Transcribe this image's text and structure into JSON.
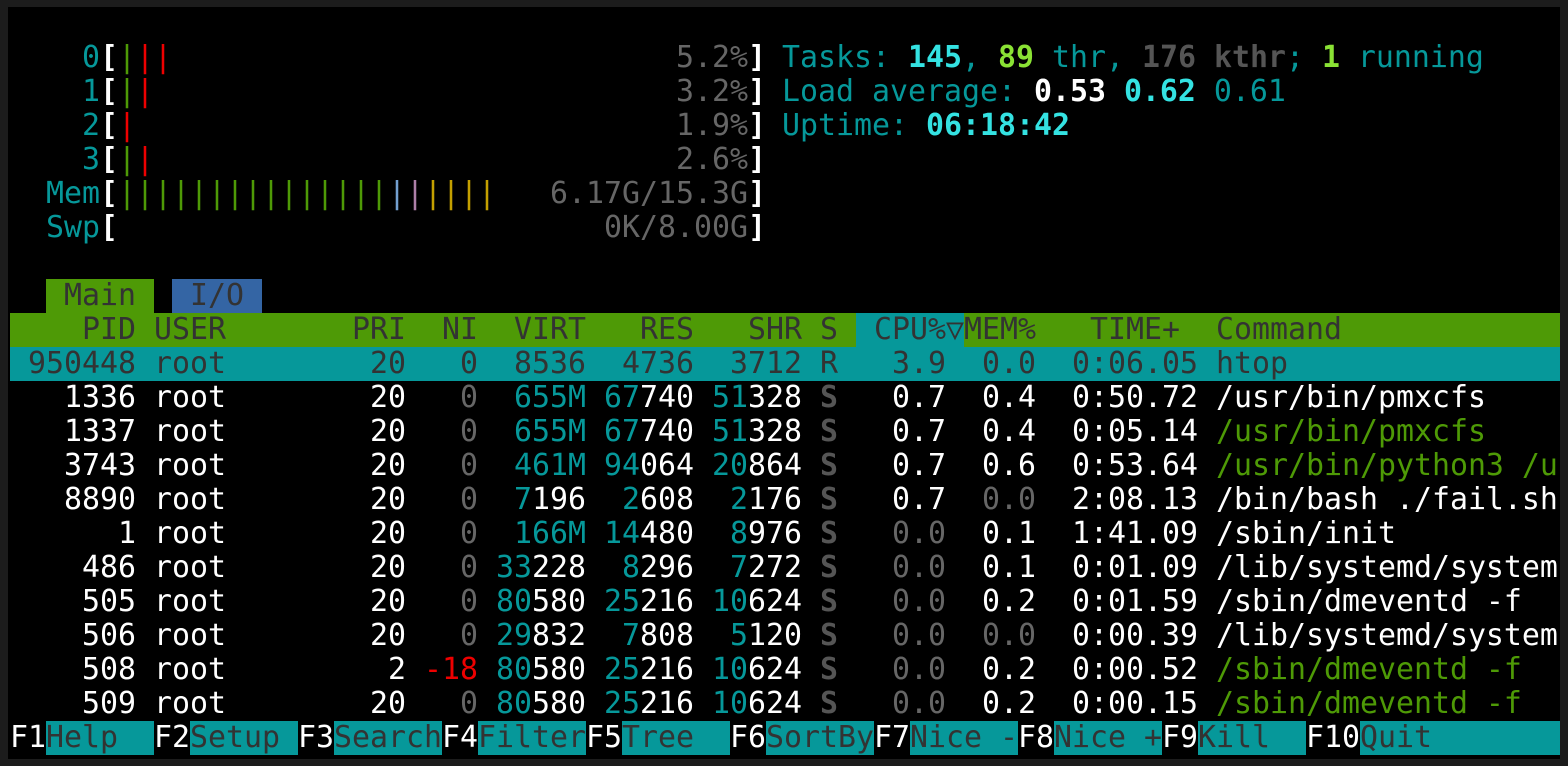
{
  "meters": {
    "cpus": [
      {
        "label": "0",
        "bars": [
          "green",
          "red",
          "red"
        ],
        "value": "5.2%"
      },
      {
        "label": "1",
        "bars": [
          "green",
          "red"
        ],
        "value": "3.2%"
      },
      {
        "label": "2",
        "bars": [
          "red"
        ],
        "value": "1.9%"
      },
      {
        "label": "3",
        "bars": [
          "green",
          "red"
        ],
        "value": "2.6%"
      }
    ],
    "mem": {
      "label": "Mem",
      "bars": [
        "green",
        "green",
        "green",
        "green",
        "green",
        "green",
        "green",
        "green",
        "green",
        "green",
        "green",
        "green",
        "green",
        "green",
        "green",
        "blue",
        "mag",
        "yel",
        "yel",
        "yel",
        "yel"
      ],
      "value": "6.17G/15.3G"
    },
    "swp": {
      "label": "Swp",
      "bars": [],
      "value": "0K/8.00G"
    }
  },
  "tasks": {
    "label": "Tasks: ",
    "tasks": "145",
    "sep1": ", ",
    "threads": "89",
    "thr": " thr, ",
    "kthreads": "176 kthr",
    "sep2": "; ",
    "running": "1",
    "running_label": " running"
  },
  "load": {
    "label": "Load average: ",
    "one": "0.53",
    "five": "0.62",
    "fifteen": "0.61"
  },
  "uptime": {
    "label": "Uptime: ",
    "value": "06:18:42"
  },
  "tabs": [
    {
      "label": "Main",
      "active": true
    },
    {
      "label": "I/O",
      "active": false
    }
  ],
  "columns": {
    "pid": "PID",
    "user": "USER",
    "pri": "PRI",
    "ni": "NI",
    "virt": "VIRT",
    "res": "RES",
    "shr": "SHR",
    "s": "S",
    "cpu": "CPU%▽",
    "mem": "MEM%",
    "time": "TIME+",
    "command": "Command"
  },
  "sort_column": "CPU%",
  "processes": [
    {
      "pid": "950448",
      "user": "root",
      "pri": "20",
      "ni": "0",
      "virt": "8536",
      "res": "4736",
      "shr": "3712",
      "s": "R",
      "cpu": "3.9",
      "mem": "0.0",
      "time": "0:06.05",
      "command": "htop",
      "thread": false,
      "selected": true
    },
    {
      "pid": "1336",
      "user": "root",
      "pri": "20",
      "ni": "0",
      "virt": "655M",
      "res": "67740",
      "shr": "51328",
      "s": "S",
      "cpu": "0.7",
      "mem": "0.4",
      "time": "0:50.72",
      "command": "/usr/bin/pmxcfs",
      "thread": false
    },
    {
      "pid": "1337",
      "user": "root",
      "pri": "20",
      "ni": "0",
      "virt": "655M",
      "res": "67740",
      "shr": "51328",
      "s": "S",
      "cpu": "0.7",
      "mem": "0.4",
      "time": "0:05.14",
      "command": "/usr/bin/pmxcfs",
      "thread": true
    },
    {
      "pid": "3743",
      "user": "root",
      "pri": "20",
      "ni": "0",
      "virt": "461M",
      "res": "94064",
      "shr": "20864",
      "s": "S",
      "cpu": "0.7",
      "mem": "0.6",
      "time": "0:53.64",
      "command": "/usr/bin/python3 /u",
      "thread": true
    },
    {
      "pid": "8890",
      "user": "root",
      "pri": "20",
      "ni": "0",
      "virt": "7196",
      "res": "2608",
      "shr": "2176",
      "s": "S",
      "cpu": "0.7",
      "mem": "0.0",
      "time": "2:08.13",
      "command": "/bin/bash ./fail.sh",
      "thread": false
    },
    {
      "pid": "1",
      "user": "root",
      "pri": "20",
      "ni": "0",
      "virt": "166M",
      "res": "14480",
      "shr": "8976",
      "s": "S",
      "cpu": "0.0",
      "mem": "0.1",
      "time": "1:41.09",
      "command": "/sbin/init",
      "thread": false
    },
    {
      "pid": "486",
      "user": "root",
      "pri": "20",
      "ni": "0",
      "virt": "33228",
      "res": "8296",
      "shr": "7272",
      "s": "S",
      "cpu": "0.0",
      "mem": "0.1",
      "time": "0:01.09",
      "command": "/lib/systemd/system",
      "thread": false
    },
    {
      "pid": "505",
      "user": "root",
      "pri": "20",
      "ni": "0",
      "virt": "80580",
      "res": "25216",
      "shr": "10624",
      "s": "S",
      "cpu": "0.0",
      "mem": "0.2",
      "time": "0:01.59",
      "command": "/sbin/dmeventd -f",
      "thread": false
    },
    {
      "pid": "506",
      "user": "root",
      "pri": "20",
      "ni": "0",
      "virt": "29832",
      "res": "7808",
      "shr": "5120",
      "s": "S",
      "cpu": "0.0",
      "mem": "0.0",
      "time": "0:00.39",
      "command": "/lib/systemd/system",
      "thread": false
    },
    {
      "pid": "508",
      "user": "root",
      "pri": "2",
      "ni": "-18",
      "virt": "80580",
      "res": "25216",
      "shr": "10624",
      "s": "S",
      "cpu": "0.0",
      "mem": "0.2",
      "time": "0:00.52",
      "command": "/sbin/dmeventd -f",
      "thread": true
    },
    {
      "pid": "509",
      "user": "root",
      "pri": "20",
      "ni": "0",
      "virt": "80580",
      "res": "25216",
      "shr": "10624",
      "s": "S",
      "cpu": "0.0",
      "mem": "0.2",
      "time": "0:00.15",
      "command": "/sbin/dmeventd -f",
      "thread": true
    }
  ],
  "footer": [
    {
      "key": "F1",
      "label": "Help  "
    },
    {
      "key": "F2",
      "label": "Setup "
    },
    {
      "key": "F3",
      "label": "Search"
    },
    {
      "key": "F4",
      "label": "Filter"
    },
    {
      "key": "F5",
      "label": "Tree  "
    },
    {
      "key": "F6",
      "label": "SortBy"
    },
    {
      "key": "F7",
      "label": "Nice -"
    },
    {
      "key": "F8",
      "label": "Nice +"
    },
    {
      "key": "F9",
      "label": "Kill  "
    },
    {
      "key": "F10",
      "label": "Quit"
    }
  ],
  "colors": {
    "teal": "#06989a",
    "green": "#4e9a06",
    "blue": "#3465a4",
    "bright_cyan": "#34e2e2"
  }
}
